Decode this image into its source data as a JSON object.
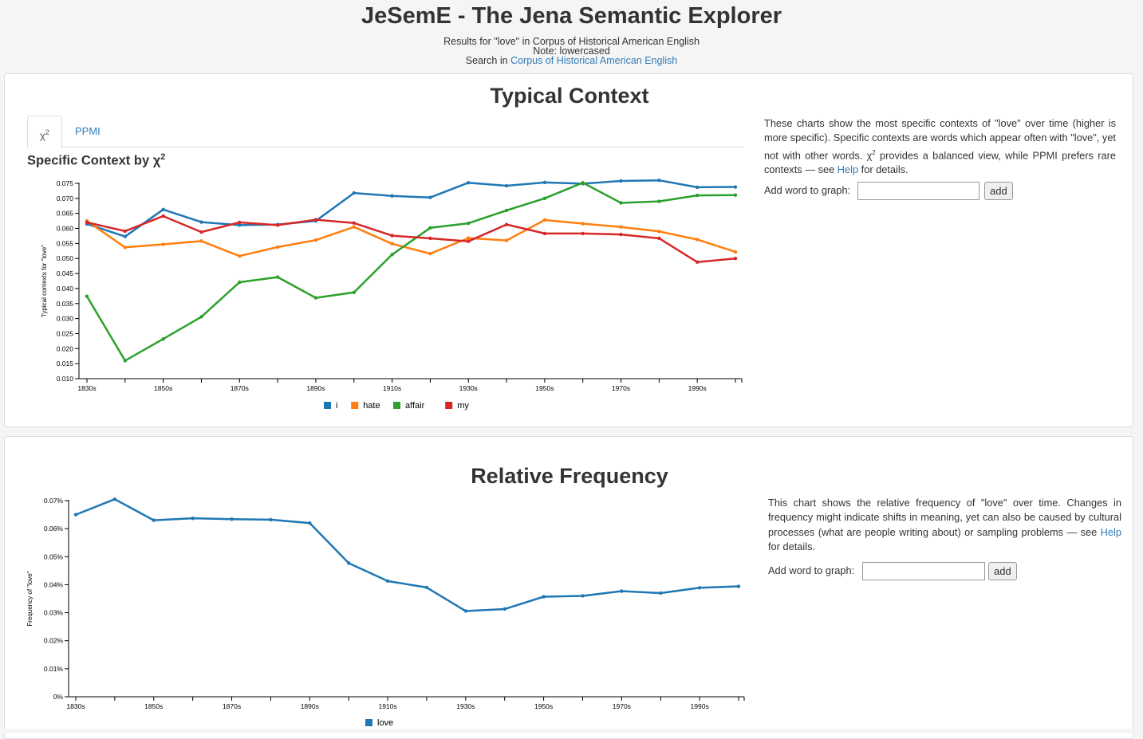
{
  "header": {
    "title": "JeSemE - The Jena Semantic Explorer",
    "results_line": "Results for \"love\" in Corpus of Historical American English",
    "note_line": "Note: lowercased",
    "search_prefix": "Search in",
    "search_link": "Corpus of Historical American English"
  },
  "typical_context": {
    "heading": "Typical Context",
    "tabs": {
      "chi_base": "χ",
      "chi_sup": "2",
      "ppmi": "PPMI"
    },
    "chart_title_base": "Specific Context by χ",
    "chart_title_sup": "2",
    "description": {
      "part1": "These charts show the most specific contexts of \"love\" over time (higher is more specific). Specific contexts are words which appear often with \"love\", yet not with other words. ",
      "chi": "χ",
      "sup": "2",
      "part2": " provides a balanced view, while PPMI prefers rare contexts — see ",
      "help": "Help",
      "part3": " for details."
    },
    "add_label": "Add word to graph:",
    "add_placeholder": "",
    "add_button": "add"
  },
  "relative_frequency": {
    "heading": "Relative Frequency",
    "description": {
      "part1": "This chart shows the relative frequency of \"love\" over time. Changes in frequency might indicate shifts in meaning, yet can also be caused by cultural processes (what are people writing about) or sampling problems — see ",
      "help": "Help",
      "part2": " for details."
    },
    "add_label": "Add word to graph:",
    "add_placeholder": "",
    "add_button": "add"
  },
  "colors": {
    "blue": "#1f77b4",
    "orange": "#ff7f0e",
    "green": "#2ca02c",
    "red": "#d62728"
  },
  "chart_data": [
    {
      "type": "line",
      "title": "Specific Context by χ2",
      "ylabel": "Typical contexts for \"love\"",
      "xlabel": "",
      "x": [
        1830,
        1840,
        1850,
        1860,
        1870,
        1880,
        1890,
        1900,
        1910,
        1920,
        1930,
        1940,
        1950,
        1960,
        1970,
        1980,
        1990,
        2000
      ],
      "xticks": [
        1830,
        1850,
        1870,
        1890,
        1910,
        1930,
        1950,
        1970,
        1990
      ],
      "xtick_labels": [
        "1830s",
        "1850s",
        "1870s",
        "1890s",
        "1910s",
        "1930s",
        "1950s",
        "1970s",
        "1990s"
      ],
      "ylim": [
        0.01,
        0.075
      ],
      "yticks": [
        "0.010",
        "0.015",
        "0.020",
        "0.025",
        "0.030",
        "0.035",
        "0.040",
        "0.045",
        "0.050",
        "0.055",
        "0.060",
        "0.065",
        "0.070",
        "0.075"
      ],
      "legend_position": "bottom",
      "series": [
        {
          "name": "i",
          "color": "#1f77b4",
          "values": [
            0.0615,
            0.0573,
            0.0663,
            0.0621,
            0.0611,
            0.0613,
            0.0625,
            0.0718,
            0.0708,
            0.0703,
            0.0752,
            0.0742,
            0.0753,
            0.0749,
            0.0758,
            0.076,
            0.0737,
            0.0738
          ]
        },
        {
          "name": "hate",
          "color": "#ff7f0e",
          "values": [
            0.0625,
            0.0537,
            0.0547,
            0.0558,
            0.0508,
            0.0538,
            0.0561,
            0.0605,
            0.0549,
            0.0516,
            0.0568,
            0.056,
            0.0628,
            0.0616,
            0.0605,
            0.059,
            0.0563,
            0.0522
          ]
        },
        {
          "name": "affair",
          "color": "#2ca02c",
          "values": [
            0.0374,
            0.016,
            0.0232,
            0.0306,
            0.0421,
            0.0438,
            0.0369,
            0.0387,
            0.0513,
            0.0602,
            0.0617,
            0.066,
            0.07,
            0.0752,
            0.0685,
            0.069,
            0.071,
            0.0711
          ]
        },
        {
          "name": "my",
          "color": "#d62728",
          "values": [
            0.062,
            0.0591,
            0.0641,
            0.0588,
            0.062,
            0.0611,
            0.0629,
            0.0618,
            0.0576,
            0.0567,
            0.0557,
            0.0613,
            0.0583,
            0.0583,
            0.058,
            0.0567,
            0.0488,
            0.05
          ]
        }
      ]
    },
    {
      "type": "line",
      "title": "",
      "ylabel": "Frequency of \"love\"",
      "xlabel": "",
      "x": [
        1830,
        1840,
        1850,
        1860,
        1870,
        1880,
        1890,
        1900,
        1910,
        1920,
        1930,
        1940,
        1950,
        1960,
        1970,
        1980,
        1990,
        2000
      ],
      "xticks": [
        1830,
        1850,
        1870,
        1890,
        1910,
        1930,
        1950,
        1970,
        1990
      ],
      "xtick_labels": [
        "1830s",
        "1850s",
        "1870s",
        "1890s",
        "1910s",
        "1930s",
        "1950s",
        "1970s",
        "1990s"
      ],
      "ylim": [
        0,
        0.07
      ],
      "yticks": [
        "0%",
        "0.01%",
        "0.02%",
        "0.03%",
        "0.04%",
        "0.05%",
        "0.06%",
        "0.07%"
      ],
      "legend_position": "bottom",
      "series": [
        {
          "name": "love",
          "color": "#1f77b4",
          "values": [
            0.065,
            0.0705,
            0.063,
            0.0637,
            0.0634,
            0.0632,
            0.062,
            0.0477,
            0.0413,
            0.039,
            0.0306,
            0.0313,
            0.0357,
            0.036,
            0.0377,
            0.037,
            0.0389,
            0.0394
          ]
        }
      ]
    }
  ]
}
